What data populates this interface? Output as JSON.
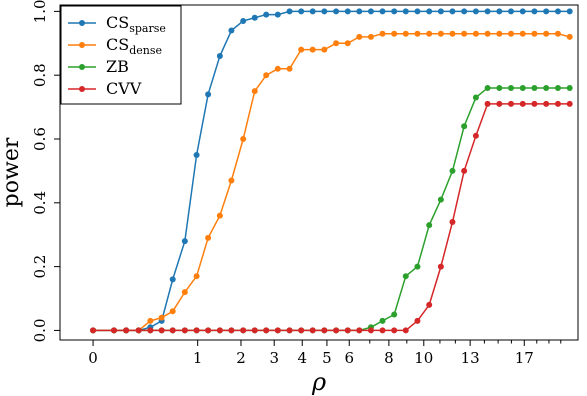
{
  "chart_data": {
    "type": "line",
    "xlabel": "ρ",
    "ylabel": "power",
    "x_scale": "sqrt",
    "xlim": [
      -0.1,
      21.5
    ],
    "ylim": [
      -0.03,
      1.02
    ],
    "x_ticks": [
      0,
      1,
      2,
      3,
      4,
      5,
      6,
      8,
      10,
      13,
      17
    ],
    "x_minor_ticks": [
      7,
      9,
      11,
      12,
      14,
      15,
      16,
      18,
      19,
      20
    ],
    "y_ticks": [
      0.0,
      0.2,
      0.4,
      0.6,
      0.8,
      1.0
    ],
    "y_tick_labels": [
      "0.0",
      "0.2",
      "0.4",
      "0.6",
      "0.8",
      "1.0"
    ],
    "grid": false,
    "legend_position": "top-left",
    "x": [
      0.0,
      0.04,
      0.1,
      0.19,
      0.3,
      0.43,
      0.58,
      0.77,
      0.98,
      1.21,
      1.47,
      1.75,
      2.06,
      2.39,
      2.74,
      3.12,
      3.53,
      3.96,
      4.41,
      4.89,
      5.4,
      5.93,
      6.48,
      7.06,
      7.66,
      8.29,
      8.94,
      9.62,
      10.33,
      11.06,
      11.81,
      12.59,
      13.4,
      14.23,
      15.09,
      15.97,
      16.88,
      17.81,
      18.77,
      19.76,
      20.77
    ],
    "series": [
      {
        "name": "CS",
        "name_sub": "sparse",
        "color": "#1f77b4",
        "values": [
          0.0,
          0.0,
          0.0,
          0.0,
          0.01,
          0.03,
          0.16,
          0.28,
          0.55,
          0.74,
          0.86,
          0.94,
          0.97,
          0.98,
          0.99,
          0.99,
          1.0,
          1.0,
          1.0,
          1.0,
          1.0,
          1.0,
          1.0,
          1.0,
          1.0,
          1.0,
          1.0,
          1.0,
          1.0,
          1.0,
          1.0,
          1.0,
          1.0,
          1.0,
          1.0,
          1.0,
          1.0,
          1.0,
          1.0,
          1.0,
          1.0
        ]
      },
      {
        "name": "CS",
        "name_sub": "dense",
        "color": "#ff7f0e",
        "values": [
          0.0,
          0.0,
          0.0,
          0.0,
          0.03,
          0.04,
          0.06,
          0.12,
          0.17,
          0.29,
          0.36,
          0.47,
          0.6,
          0.75,
          0.8,
          0.82,
          0.82,
          0.88,
          0.88,
          0.88,
          0.9,
          0.9,
          0.92,
          0.92,
          0.93,
          0.93,
          0.93,
          0.93,
          0.93,
          0.93,
          0.93,
          0.93,
          0.93,
          0.93,
          0.93,
          0.93,
          0.93,
          0.93,
          0.93,
          0.93,
          0.92
        ]
      },
      {
        "name": "ZB",
        "name_sub": "",
        "color": "#2ca02c",
        "values": [
          0.0,
          0.0,
          0.0,
          0.0,
          0.0,
          0.0,
          0.0,
          0.0,
          0.0,
          0.0,
          0.0,
          0.0,
          0.0,
          0.0,
          0.0,
          0.0,
          0.0,
          0.0,
          0.0,
          0.0,
          0.0,
          0.0,
          0.0,
          0.01,
          0.03,
          0.05,
          0.17,
          0.2,
          0.33,
          0.41,
          0.5,
          0.64,
          0.73,
          0.76,
          0.76,
          0.76,
          0.76,
          0.76,
          0.76,
          0.76,
          0.76
        ]
      },
      {
        "name": "CVV",
        "name_sub": "",
        "color": "#d62728",
        "values": [
          0.0,
          0.0,
          0.0,
          0.0,
          0.0,
          0.0,
          0.0,
          0.0,
          0.0,
          0.0,
          0.0,
          0.0,
          0.0,
          0.0,
          0.0,
          0.0,
          0.0,
          0.0,
          0.0,
          0.0,
          0.0,
          0.0,
          0.0,
          0.0,
          0.0,
          0.0,
          0.0,
          0.03,
          0.08,
          0.2,
          0.34,
          0.5,
          0.61,
          0.71,
          0.71,
          0.71,
          0.71,
          0.71,
          0.71,
          0.71,
          0.71
        ]
      }
    ]
  }
}
